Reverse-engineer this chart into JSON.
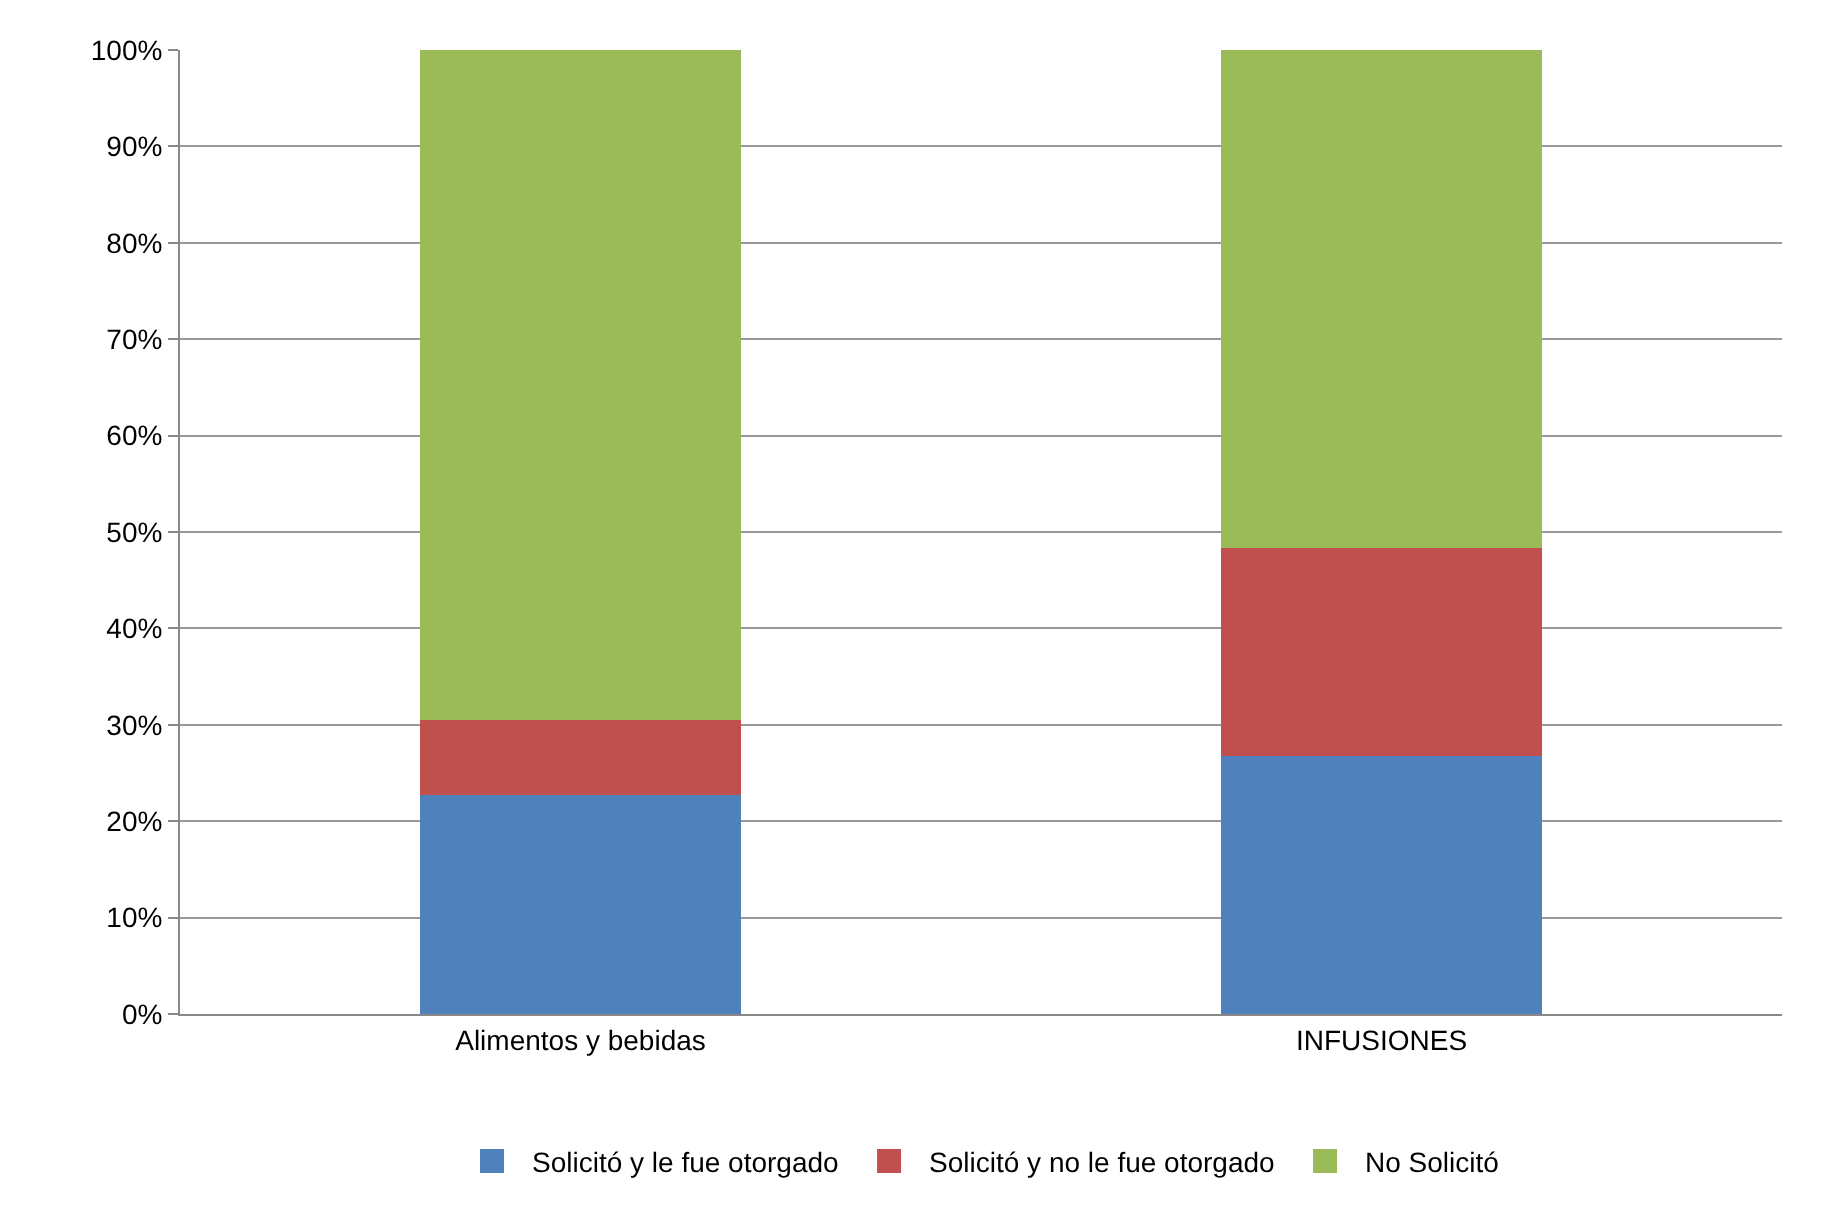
{
  "chart_data": {
    "type": "bar",
    "stacked": true,
    "categories": [
      "Alimentos y bebidas",
      "INFUSIONES"
    ],
    "series": [
      {
        "name": "Solicitó y le fue otorgado",
        "color": "#4f81bd",
        "values": [
          22.7,
          26.8
        ]
      },
      {
        "name": "Solicitó y no le fue otorgado",
        "color": "#c0504d",
        "values": [
          7.8,
          21.5
        ]
      },
      {
        "name": "No Solicitó",
        "color": "#9bbb59",
        "values": [
          69.5,
          51.7
        ]
      }
    ],
    "ylim": [
      0,
      100
    ],
    "yticks": [
      {
        "value": 0,
        "label": "0%"
      },
      {
        "value": 10,
        "label": "10%"
      },
      {
        "value": 20,
        "label": "20%"
      },
      {
        "value": 30,
        "label": "30%"
      },
      {
        "value": 40,
        "label": "40%"
      },
      {
        "value": 50,
        "label": "50%"
      },
      {
        "value": 60,
        "label": "60%"
      },
      {
        "value": 70,
        "label": "70%"
      },
      {
        "value": 80,
        "label": "80%"
      },
      {
        "value": 90,
        "label": "90%"
      },
      {
        "value": 100,
        "label": "100%"
      }
    ],
    "grid": "y",
    "legend": "bottom"
  }
}
